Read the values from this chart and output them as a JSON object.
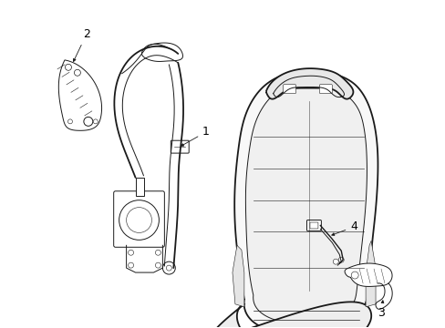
{
  "background_color": "#ffffff",
  "line_color": "#1a1a1a",
  "lw_main": 1.3,
  "lw_thin": 0.7,
  "lw_detail": 0.5,
  "label_fontsize": 9,
  "figsize": [
    4.89,
    3.6
  ],
  "dpi": 100
}
